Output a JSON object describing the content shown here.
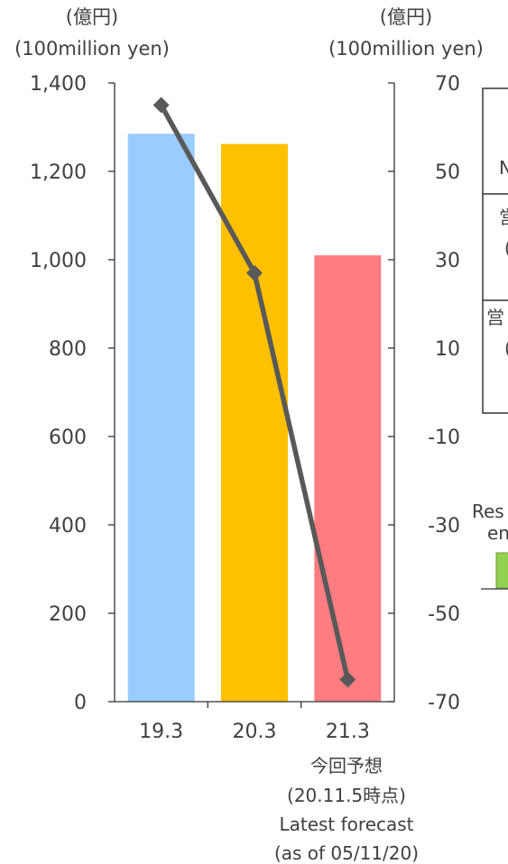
{
  "chart_data": {
    "type": "bar",
    "left_axis": {
      "unit_ja": "(億円)",
      "unit_en": "(100million yen)",
      "ylim": [
        0,
        1400
      ],
      "ticks": [
        "1,400",
        "1,200",
        "1,000",
        "800",
        "600",
        "400",
        "200",
        "0"
      ],
      "tick_values": [
        1400,
        1200,
        1000,
        800,
        600,
        400,
        200,
        0
      ]
    },
    "right_axis": {
      "unit_ja": "(億円)",
      "unit_en": "(100million yen)",
      "ylim": [
        -70,
        70
      ],
      "ticks": [
        "70",
        "50",
        "30",
        "10",
        "-10",
        "-30",
        "-50",
        "-70"
      ],
      "tick_values": [
        70,
        50,
        30,
        10,
        -10,
        -30,
        -50,
        -70
      ]
    },
    "categories": [
      "19.3",
      "20.3",
      "21.3"
    ],
    "bars": {
      "values": [
        1285,
        1262,
        1010
      ],
      "colors": [
        "#99ccff",
        "#ffc000",
        "#ff7c80"
      ]
    },
    "line": {
      "axis": "right",
      "values": [
        65,
        27,
        -65
      ],
      "color": "#595959"
    },
    "forecast_note": [
      "今回予想",
      "(20.11.5時点)",
      "Latest forecast",
      "(as of 05/11/20)"
    ],
    "cut_off_text": [
      "N",
      "営",
      "(",
      "営",
      "(",
      "Res",
      "en"
    ],
    "accent_colors": {
      "green_marker": "#92d050"
    }
  }
}
